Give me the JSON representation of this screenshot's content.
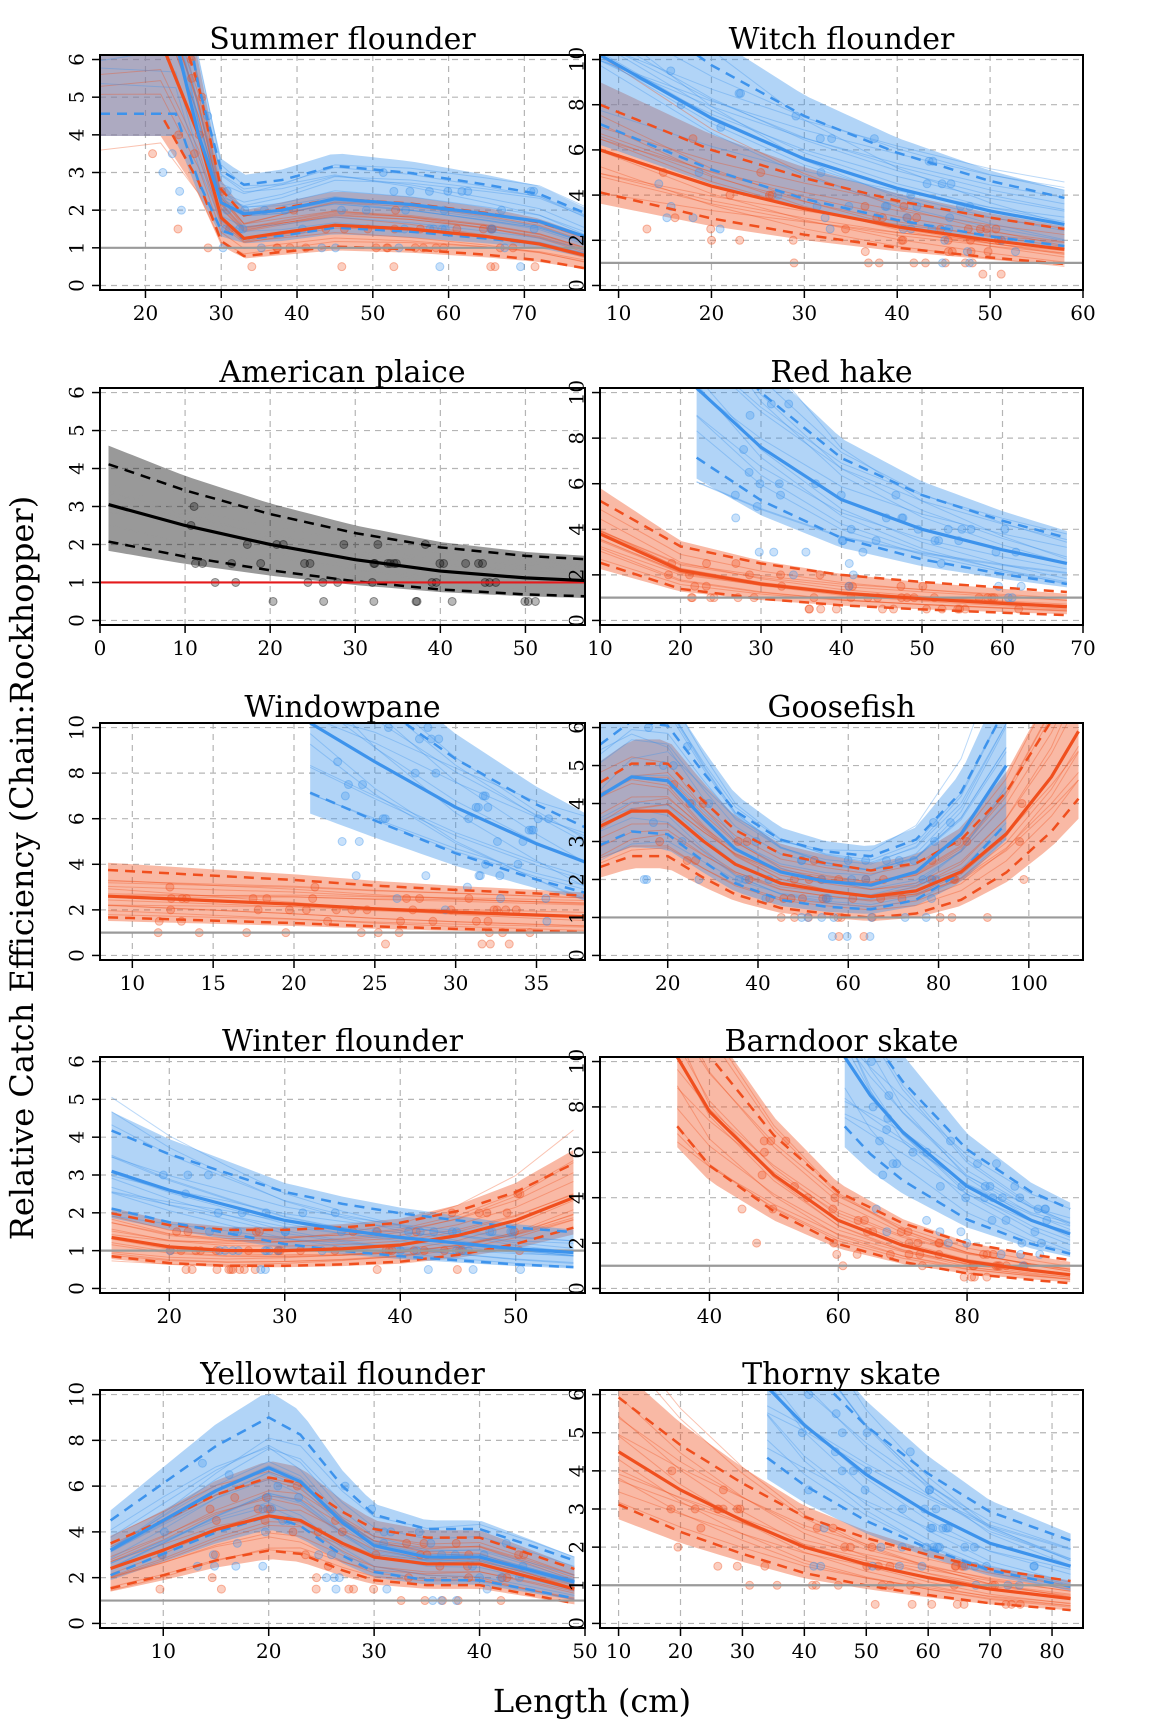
{
  "figure": {
    "ylabel": "Relative Catch Efficiency (Chain:Rockhopper)",
    "xlabel": "Length (cm)",
    "colors": {
      "orange": "#f04f1e",
      "blue": "#3d93ec",
      "black": "#000000",
      "grey": "#9a9a9a",
      "red": "#e41a1c"
    }
  },
  "chart_data": [
    {
      "type": "line",
      "title": "Summer flounder",
      "xlim": [
        14,
        78
      ],
      "ylim": [
        0,
        6
      ],
      "xticks": [
        20,
        30,
        40,
        50,
        60,
        70
      ],
      "yticks": [
        0,
        1,
        2,
        3,
        4,
        5,
        6
      ],
      "reference_line": 1,
      "series": [
        {
          "color": "orange",
          "x": [
            14,
            22,
            27,
            30,
            33,
            38,
            45,
            55,
            65,
            72,
            78
          ],
          "y": [
            6.5,
            6.5,
            4.0,
            1.8,
            1.25,
            1.4,
            1.6,
            1.5,
            1.3,
            1.1,
            0.8
          ]
        },
        {
          "color": "blue",
          "x": [
            14,
            24,
            27,
            30,
            33,
            38,
            45,
            55,
            65,
            72,
            78
          ],
          "y": [
            6.5,
            6.5,
            4.0,
            2.2,
            1.9,
            2.0,
            2.3,
            2.15,
            1.9,
            1.7,
            1.3
          ]
        }
      ]
    },
    {
      "type": "line",
      "title": "Witch flounder",
      "xlim": [
        8,
        60
      ],
      "ylim": [
        0,
        10
      ],
      "xticks": [
        10,
        20,
        30,
        40,
        50,
        60
      ],
      "yticks": [
        0,
        2,
        4,
        6,
        8,
        10
      ],
      "reference_line": 1,
      "series": [
        {
          "color": "orange",
          "x": [
            8,
            20,
            30,
            40,
            50,
            58
          ],
          "y": [
            6.0,
            4.4,
            3.4,
            2.6,
            2.0,
            1.6
          ]
        },
        {
          "color": "blue",
          "x": [
            8,
            20,
            30,
            40,
            50,
            58
          ],
          "y": [
            10.2,
            7.4,
            5.6,
            4.3,
            3.3,
            2.7
          ]
        }
      ]
    },
    {
      "type": "line",
      "title": "American plaice",
      "xlim": [
        0,
        57
      ],
      "ylim": [
        0,
        6
      ],
      "xticks": [
        0,
        10,
        20,
        30,
        40,
        50
      ],
      "yticks": [
        0,
        1,
        2,
        3,
        4,
        5,
        6
      ],
      "reference_line": 1,
      "series": [
        {
          "color": "black",
          "x": [
            1,
            10,
            20,
            30,
            40,
            50,
            57
          ],
          "y": [
            3.05,
            2.5,
            2.0,
            1.6,
            1.3,
            1.12,
            1.05
          ]
        }
      ]
    },
    {
      "type": "line",
      "title": "Red hake",
      "xlim": [
        10,
        70
      ],
      "ylim": [
        0,
        10
      ],
      "xticks": [
        10,
        20,
        30,
        40,
        50,
        60,
        70
      ],
      "yticks": [
        0,
        2,
        4,
        6,
        8,
        10
      ],
      "reference_line": 1,
      "series": [
        {
          "color": "orange",
          "x": [
            10,
            20,
            30,
            40,
            50,
            60,
            68
          ],
          "y": [
            3.8,
            2.2,
            1.6,
            1.2,
            0.95,
            0.75,
            0.6
          ]
        },
        {
          "color": "blue",
          "x": [
            22,
            30,
            40,
            50,
            60,
            68
          ],
          "y": [
            10.2,
            7.6,
            5.3,
            4.0,
            3.1,
            2.5
          ]
        }
      ]
    },
    {
      "type": "line",
      "title": "Windowpane",
      "xlim": [
        8,
        38
      ],
      "ylim": [
        0,
        10
      ],
      "xticks": [
        10,
        15,
        20,
        25,
        30,
        35
      ],
      "yticks": [
        0,
        2,
        4,
        6,
        8,
        10
      ],
      "reference_line": 1,
      "series": [
        {
          "color": "orange",
          "x": [
            8.5,
            15,
            20,
            25,
            30,
            38
          ],
          "y": [
            2.6,
            2.4,
            2.25,
            2.05,
            1.9,
            1.7
          ]
        },
        {
          "color": "blue",
          "x": [
            21,
            25,
            30,
            35,
            38
          ],
          "y": [
            10.2,
            8.5,
            6.5,
            4.9,
            4.1
          ]
        }
      ]
    },
    {
      "type": "line",
      "title": "Goosefish",
      "xlim": [
        5,
        112
      ],
      "ylim": [
        0,
        6
      ],
      "xticks": [
        20,
        40,
        60,
        80,
        100
      ],
      "yticks": [
        0,
        1,
        2,
        3,
        4,
        5,
        6
      ],
      "reference_line": 1,
      "series": [
        {
          "color": "orange",
          "x": [
            5,
            12,
            20,
            28,
            35,
            45,
            55,
            65,
            75,
            85,
            95,
            105,
            111
          ],
          "y": [
            3.4,
            3.8,
            3.8,
            3.0,
            2.4,
            1.9,
            1.7,
            1.55,
            1.7,
            2.2,
            3.2,
            4.7,
            5.9
          ]
        },
        {
          "color": "blue",
          "x": [
            5,
            12,
            20,
            28,
            35,
            45,
            55,
            65,
            75,
            85,
            95
          ],
          "y": [
            4.2,
            4.7,
            4.6,
            3.6,
            2.8,
            2.2,
            1.95,
            1.85,
            2.2,
            3.2,
            5.0
          ]
        }
      ]
    },
    {
      "type": "line",
      "title": "Winter flounder",
      "xlim": [
        14,
        56
      ],
      "ylim": [
        0,
        6
      ],
      "xticks": [
        20,
        30,
        40,
        50
      ],
      "yticks": [
        0,
        1,
        2,
        3,
        4,
        5,
        6
      ],
      "reference_line": 1,
      "series": [
        {
          "color": "orange",
          "x": [
            15,
            20,
            25,
            30,
            35,
            40,
            45,
            50,
            55
          ],
          "y": [
            1.35,
            1.1,
            1.0,
            1.0,
            1.05,
            1.15,
            1.4,
            1.8,
            2.4
          ]
        },
        {
          "color": "blue",
          "x": [
            15,
            20,
            25,
            30,
            35,
            40,
            45,
            50,
            55
          ],
          "y": [
            3.1,
            2.6,
            2.2,
            1.8,
            1.55,
            1.35,
            1.2,
            1.05,
            0.95
          ]
        }
      ]
    },
    {
      "type": "line",
      "title": "Barndoor skate",
      "xlim": [
        23,
        98
      ],
      "ylim": [
        0,
        10
      ],
      "xticks": [
        40,
        60,
        80
      ],
      "yticks": [
        0,
        2,
        4,
        6,
        8,
        10
      ],
      "reference_line": 1,
      "series": [
        {
          "color": "orange",
          "x": [
            35,
            40,
            50,
            60,
            70,
            80,
            90,
            96
          ],
          "y": [
            10.2,
            7.8,
            5.0,
            3.0,
            1.9,
            1.2,
            0.8,
            0.6
          ]
        },
        {
          "color": "blue",
          "x": [
            61,
            65,
            70,
            80,
            90,
            96
          ],
          "y": [
            10.2,
            8.5,
            6.9,
            4.5,
            3.0,
            2.4
          ]
        }
      ]
    },
    {
      "type": "line",
      "title": "Yellowtail flounder",
      "xlim": [
        4,
        50
      ],
      "ylim": [
        0,
        10
      ],
      "xticks": [
        10,
        20,
        30,
        40,
        50
      ],
      "yticks": [
        0,
        2,
        4,
        6,
        8,
        10
      ],
      "reference_line": 1,
      "series": [
        {
          "color": "orange",
          "x": [
            5,
            10,
            15,
            20,
            23,
            27,
            30,
            35,
            40,
            45,
            49
          ],
          "y": [
            2.4,
            3.2,
            4.1,
            4.7,
            4.5,
            3.5,
            2.9,
            2.6,
            2.6,
            2.0,
            1.5
          ]
        },
        {
          "color": "blue",
          "x": [
            5,
            10,
            15,
            20,
            23,
            27,
            30,
            35,
            40,
            45,
            49
          ],
          "y": [
            3.2,
            4.5,
            5.8,
            6.8,
            6.2,
            4.4,
            3.4,
            2.9,
            2.9,
            2.3,
            1.8
          ]
        }
      ]
    },
    {
      "type": "line",
      "title": "Thorny skate",
      "xlim": [
        7,
        85
      ],
      "ylim": [
        0,
        6
      ],
      "xticks": [
        10,
        20,
        30,
        40,
        50,
        60,
        70,
        80
      ],
      "yticks": [
        0,
        1,
        2,
        3,
        4,
        5,
        6
      ],
      "reference_line": 1,
      "series": [
        {
          "color": "orange",
          "x": [
            10,
            20,
            30,
            40,
            50,
            60,
            70,
            83
          ],
          "y": [
            4.5,
            3.5,
            2.7,
            2.0,
            1.55,
            1.2,
            0.9,
            0.65
          ]
        },
        {
          "color": "blue",
          "x": [
            34,
            40,
            50,
            60,
            70,
            83
          ],
          "y": [
            6.2,
            5.2,
            3.9,
            2.9,
            2.1,
            1.5
          ]
        }
      ]
    }
  ]
}
